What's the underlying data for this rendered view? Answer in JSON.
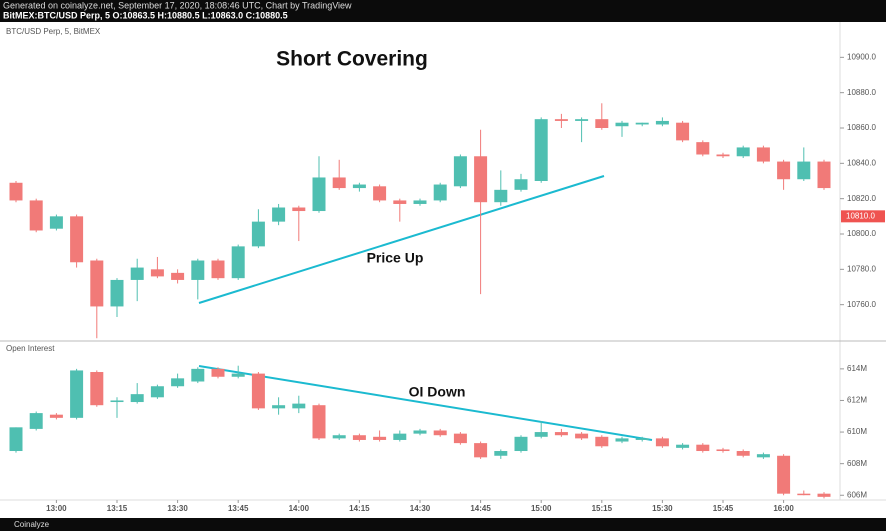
{
  "header": {
    "generated": "Generated on coinalyze.net, September 17, 2020, 18:08:46 UTC, Chart by TradingView",
    "symbol": "BitMEX:BTC/USD Perp, 5 O:10863.5 H:10880.5 L:10863.0 C:10880.5"
  },
  "footer": {
    "brand": "Coinalyze"
  },
  "chart_data": [
    {
      "type": "candlestick",
      "title": "Short Covering",
      "label": "BTC/USD Perp, 5, BitMEX",
      "annotation": "Price Up",
      "up_color": "#4fbfb1",
      "down_color": "#f17a78",
      "open": [
        10829,
        10819,
        10803,
        10810,
        10785,
        10759,
        10774,
        10780,
        10778,
        10774,
        10785,
        10775,
        10793,
        10807,
        10815,
        10813,
        10832,
        10826,
        10827,
        10819,
        10817,
        10819,
        10827,
        10844,
        10818,
        10825,
        10830,
        10865,
        10864,
        10865,
        10861,
        10862,
        10862,
        10863,
        10852,
        10845,
        10844,
        10849,
        10841,
        10831,
        10841
      ],
      "high": [
        10830,
        10820,
        10811,
        10811,
        10786,
        10775,
        10786,
        10787,
        10780,
        10786,
        10786,
        10794,
        10814,
        10817,
        10816,
        10844,
        10842,
        10829,
        10828,
        10820,
        10820,
        10829,
        10845,
        10859,
        10836,
        10834,
        10866,
        10868,
        10866,
        10874,
        10864,
        10863,
        10866,
        10864,
        10853,
        10846,
        10850,
        10850,
        10842,
        10849,
        10842
      ],
      "low": [
        10818,
        10801,
        10802,
        10781,
        10741,
        10753,
        10762,
        10775,
        10772,
        10763,
        10774,
        10774,
        10792,
        10805,
        10796,
        10812,
        10825,
        10824,
        10818,
        10807,
        10816,
        10818,
        10826,
        10766,
        10816,
        10824,
        10829,
        10860,
        10852,
        10859,
        10855,
        10861,
        10861,
        10852,
        10844,
        10843,
        10843,
        10840,
        10825,
        10830,
        10825
      ],
      "close": [
        10819,
        10802,
        10810,
        10784,
        10759,
        10774,
        10781,
        10776,
        10774,
        10785,
        10775,
        10793,
        10807,
        10815,
        10813,
        10832,
        10826,
        10828,
        10819,
        10817,
        10819,
        10828,
        10844,
        10818,
        10825,
        10831,
        10865,
        10864,
        10865,
        10860,
        10863,
        10863,
        10864,
        10853,
        10845,
        10844,
        10849,
        10841,
        10831,
        10841,
        10826
      ],
      "last_price": {
        "value": 10810,
        "label": "10810.0"
      },
      "ylim": [
        10740,
        10920
      ],
      "yticks": [
        {
          "value": 10760,
          "label": "10760.0"
        },
        {
          "value": 10780,
          "label": "10780.0"
        },
        {
          "value": 10800,
          "label": "10800.0"
        },
        {
          "value": 10820,
          "label": "10820.0"
        },
        {
          "value": 10840,
          "label": "10840.0"
        },
        {
          "value": 10860,
          "label": "10860.0"
        },
        {
          "value": 10880,
          "label": "10880.0"
        },
        {
          "value": 10900,
          "label": "10900.0"
        }
      ]
    },
    {
      "type": "candlestick",
      "label": "Open Interest",
      "annotation": "OI Down",
      "up_color": "#4fbfb1",
      "down_color": "#f17a78",
      "categories": [
        null,
        null,
        "13:00",
        null,
        null,
        "13:15",
        null,
        null,
        "13:30",
        null,
        null,
        "13:45",
        null,
        null,
        "14:00",
        null,
        null,
        "14:15",
        null,
        null,
        "14:30",
        null,
        null,
        "14:45",
        null,
        null,
        "15:00",
        null,
        null,
        "15:15",
        null,
        null,
        "15:30",
        null,
        null,
        "15:45",
        null,
        null,
        "16:00",
        null,
        null
      ],
      "open": [
        608.8,
        610.2,
        611.1,
        610.9,
        613.8,
        611.9,
        611.9,
        612.2,
        612.9,
        613.2,
        614,
        613.5,
        613.7,
        611.5,
        611.5,
        611.7,
        609.6,
        609.8,
        609.7,
        609.5,
        609.9,
        610.1,
        609.9,
        609.3,
        608.5,
        608.8,
        609.7,
        610,
        609.9,
        609.7,
        609.4,
        609.5,
        609.6,
        609,
        609.2,
        608.9,
        608.8,
        608.4,
        608.5,
        606.1,
        606.1
      ],
      "high": [
        610.3,
        611.3,
        611.2,
        614,
        613.9,
        612.2,
        613.1,
        613,
        613.7,
        614.1,
        614.1,
        614.2,
        613.8,
        612.2,
        612.3,
        611.8,
        609.9,
        609.9,
        610.1,
        610.1,
        610.2,
        610.2,
        610,
        609.4,
        608.9,
        609.8,
        610.7,
        610.2,
        610,
        609.8,
        609.7,
        609.7,
        609.7,
        609.3,
        609.3,
        609,
        608.9,
        608.7,
        608.6,
        606.3,
        606.2
      ],
      "low": [
        608.7,
        610.1,
        610.8,
        610.8,
        611.6,
        610.9,
        611.8,
        612.1,
        612.8,
        613.1,
        613.4,
        613.4,
        611.4,
        611.1,
        611.2,
        609.5,
        609.5,
        609.4,
        609.4,
        609.4,
        609.8,
        609.7,
        609.2,
        608.3,
        608.3,
        608.7,
        609.6,
        609.7,
        609.5,
        609,
        609.3,
        609.4,
        609,
        608.9,
        608.7,
        608.7,
        608.4,
        608.3,
        606,
        606,
        605.8
      ],
      "close": [
        610.3,
        611.2,
        610.9,
        613.9,
        611.7,
        612,
        612.4,
        612.9,
        613.4,
        614,
        613.5,
        613.7,
        611.5,
        611.7,
        611.8,
        609.6,
        609.8,
        609.5,
        609.5,
        609.9,
        610.1,
        609.8,
        609.3,
        608.4,
        608.8,
        609.7,
        610,
        609.8,
        609.6,
        609.1,
        609.6,
        609.6,
        609.1,
        609.2,
        608.8,
        608.8,
        608.5,
        608.6,
        606.1,
        606.05,
        605.9
      ],
      "ylim": [
        605.7,
        615.7
      ],
      "yticks": [
        {
          "value": 606,
          "label": "606M"
        },
        {
          "value": 608,
          "label": "608M"
        },
        {
          "value": 610,
          "label": "610M"
        },
        {
          "value": 612,
          "label": "612M"
        },
        {
          "value": 614,
          "label": "614M"
        }
      ]
    }
  ]
}
